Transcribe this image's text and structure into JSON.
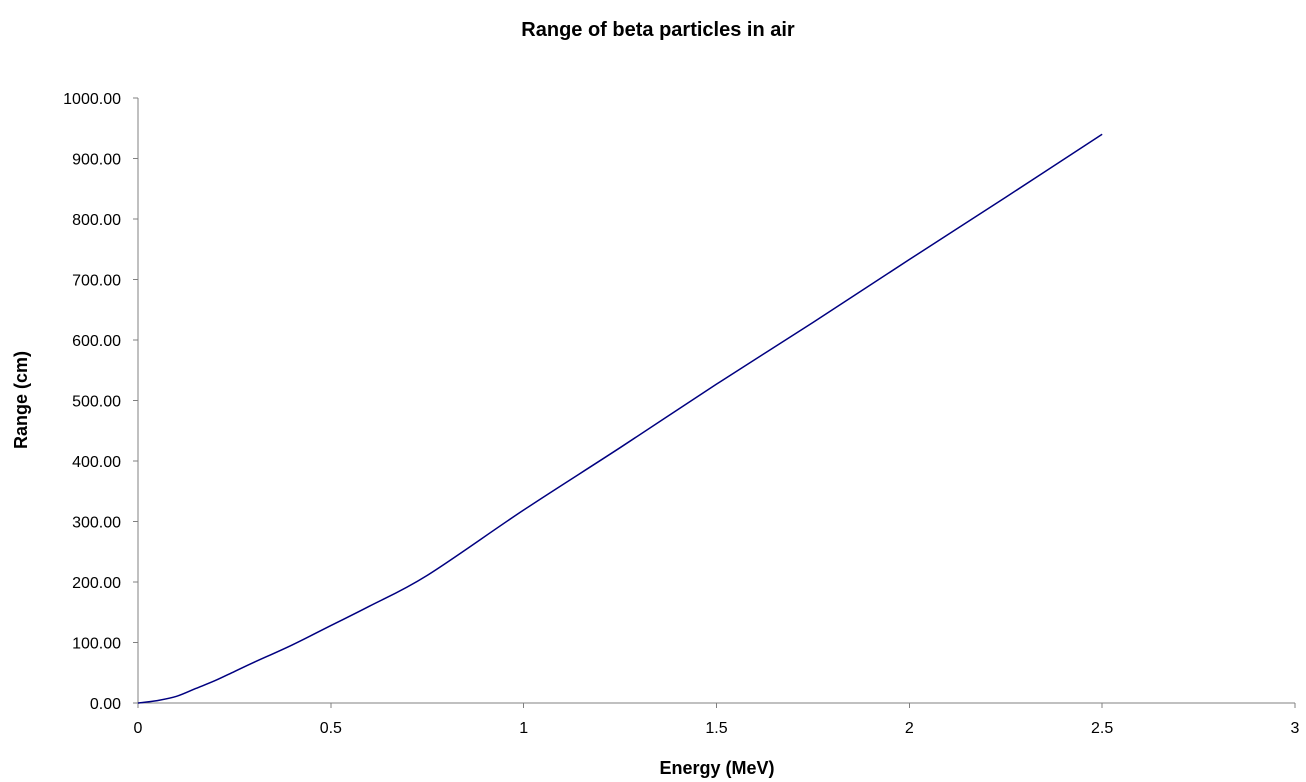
{
  "chart_data": {
    "type": "line",
    "title": "Range of beta particles in air",
    "xlabel": "Energy (MeV)",
    "ylabel": "Range (cm)",
    "xlim": [
      0,
      3
    ],
    "ylim": [
      0,
      1000
    ],
    "x_ticks": [
      "0",
      "0.5",
      "1",
      "1.5",
      "2",
      "2.5",
      "3"
    ],
    "y_ticks": [
      "0.00",
      "100.00",
      "200.00",
      "300.00",
      "400.00",
      "500.00",
      "600.00",
      "700.00",
      "800.00",
      "900.00",
      "1000.00"
    ],
    "grid": false,
    "legend": "none",
    "series": [
      {
        "color": "#000080",
        "x": [
          0,
          0.05,
          0.1,
          0.15,
          0.2,
          0.25,
          0.3,
          0.4,
          0.5,
          0.6,
          0.75,
          1.0,
          1.25,
          1.5,
          1.75,
          2.0,
          2.25,
          2.5
        ],
        "y": [
          0,
          4,
          11,
          24,
          37,
          52,
          67,
          96,
          128,
          160,
          211,
          319,
          422,
          527,
          629,
          733,
          836,
          940
        ]
      }
    ]
  }
}
